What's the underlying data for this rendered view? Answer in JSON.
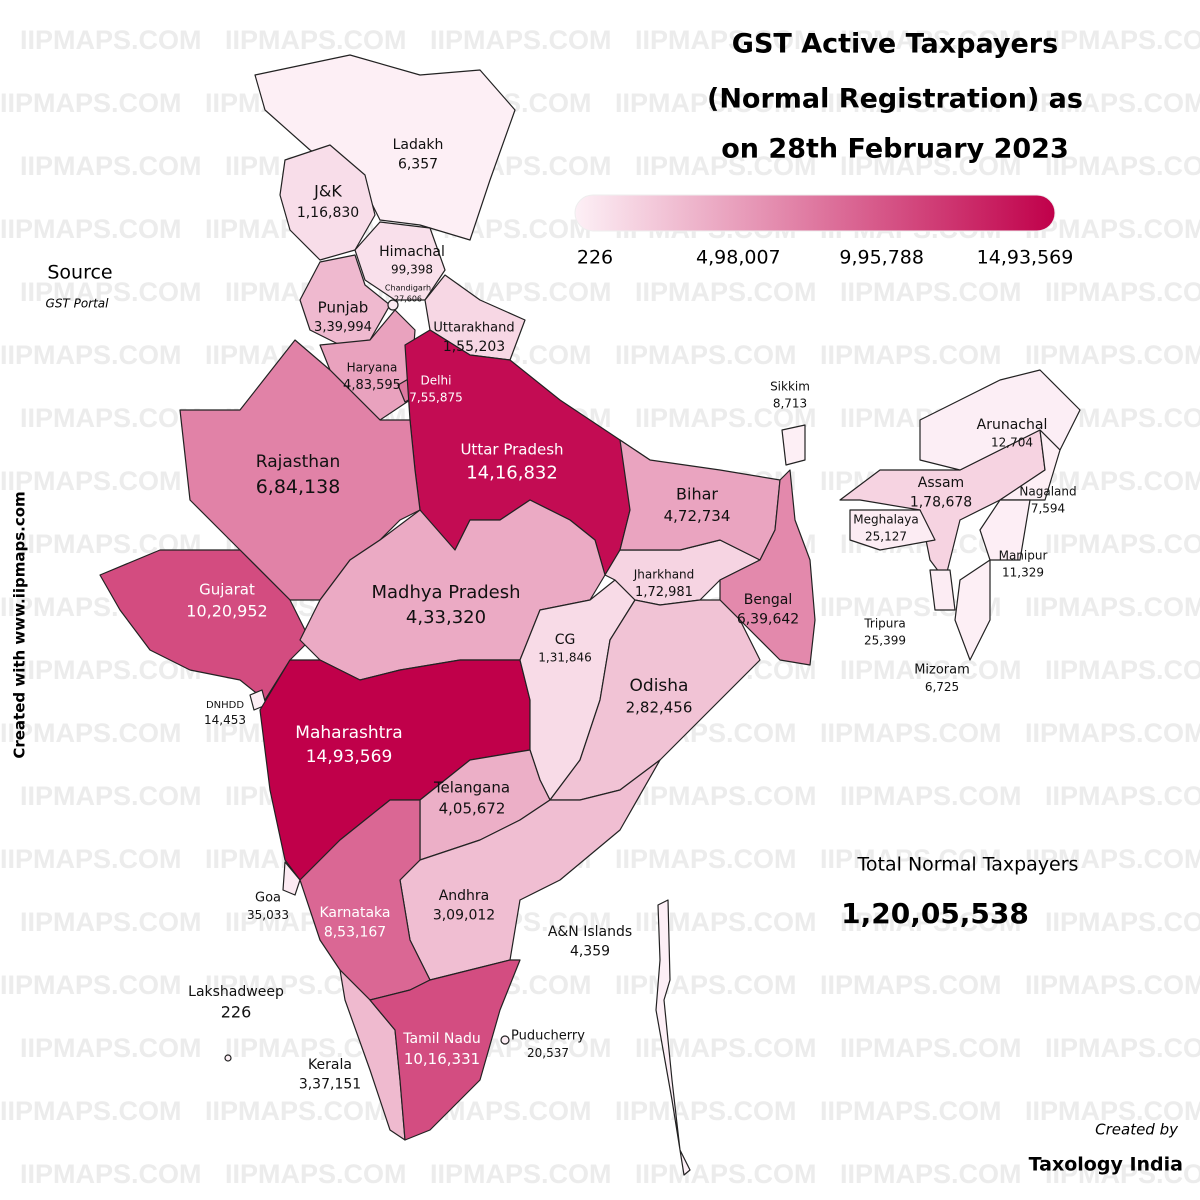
{
  "title": [
    "GST Active Taxpayers",
    "(Normal Registration) as",
    "on 28th February 2023"
  ],
  "source": {
    "heading": "Source",
    "text": "GST Portal"
  },
  "side_credit": "Created with www.iipmaps.com",
  "watermark": "IIPMAPS.COM",
  "legend": {
    "colors": [
      "#fdf0f6",
      "#c0004a"
    ],
    "ticks": [
      {
        "value": 226,
        "label": "226"
      },
      {
        "value": 498007,
        "label": "4,98,007"
      },
      {
        "value": 995788,
        "label": "9,95,788"
      },
      {
        "value": 1493569,
        "label": "14,93,569"
      }
    ]
  },
  "regions": [
    {
      "name": "Ladakh",
      "value": 6357,
      "label": "6,357"
    },
    {
      "name": "J&K",
      "value": 116830,
      "label": "1,16,830"
    },
    {
      "name": "Himachal",
      "value": 99398,
      "label": "99,398"
    },
    {
      "name": "Punjab",
      "value": 339994,
      "label": "3,39,994"
    },
    {
      "name": "Chandigarh",
      "value": 27606,
      "label": "27,606"
    },
    {
      "name": "Uttarakhand",
      "value": 155203,
      "label": "1,55,203"
    },
    {
      "name": "Haryana",
      "value": 483595,
      "label": "4,83,595"
    },
    {
      "name": "Delhi",
      "value": 755875,
      "label": "7,55,875"
    },
    {
      "name": "Uttar Pradesh",
      "value": 1416832,
      "label": "14,16,832"
    },
    {
      "name": "Rajasthan",
      "value": 684138,
      "label": "6,84,138"
    },
    {
      "name": "Gujarat",
      "value": 1020952,
      "label": "10,20,952"
    },
    {
      "name": "DNHDD",
      "value": 14453,
      "label": "14,453"
    },
    {
      "name": "Madhya Pradesh",
      "value": 433320,
      "label": "4,33,320"
    },
    {
      "name": "Maharashtra",
      "value": 1493569,
      "label": "14,93,569"
    },
    {
      "name": "Goa",
      "value": 35033,
      "label": "35,033"
    },
    {
      "name": "CG",
      "value": 131846,
      "label": "1,31,846"
    },
    {
      "name": "Jharkhand",
      "value": 172981,
      "label": "1,72,981"
    },
    {
      "name": "Bihar",
      "value": 472734,
      "label": "4,72,734"
    },
    {
      "name": "Bengal",
      "value": 639642,
      "label": "6,39,642"
    },
    {
      "name": "Sikkim",
      "value": 8713,
      "label": "8,713"
    },
    {
      "name": "Odisha",
      "value": 282456,
      "label": "2,82,456"
    },
    {
      "name": "Telangana",
      "value": 405672,
      "label": "4,05,672"
    },
    {
      "name": "Andhra",
      "value": 309012,
      "label": "3,09,012"
    },
    {
      "name": "Karnataka",
      "value": 853167,
      "label": "8,53,167"
    },
    {
      "name": "Kerala",
      "value": 337151,
      "label": "3,37,151"
    },
    {
      "name": "Tamil Nadu",
      "value": 1016331,
      "label": "10,16,331"
    },
    {
      "name": "Puducherry",
      "value": 20537,
      "label": "20,537"
    },
    {
      "name": "Lakshadweep",
      "value": 226,
      "label": "226"
    },
    {
      "name": "A&N Islands",
      "value": 4359,
      "label": "4,359"
    },
    {
      "name": "Assam",
      "value": 178678,
      "label": "1,78,678"
    },
    {
      "name": "Arunachal",
      "value": 12704,
      "label": "12,704"
    },
    {
      "name": "Nagaland",
      "value": 7594,
      "label": "7,594"
    },
    {
      "name": "Meghalaya",
      "value": 25127,
      "label": "25,127"
    },
    {
      "name": "Manipur",
      "value": 11329,
      "label": "11,329"
    },
    {
      "name": "Mizoram",
      "value": 6725,
      "label": "6,725"
    },
    {
      "name": "Tripura",
      "value": 25399,
      "label": "25,399"
    }
  ],
  "total": {
    "heading": "Total Normal Taxpayers",
    "label": "1,20,05,538"
  },
  "footer": {
    "created_by": "Created by",
    "author": "Taxology India"
  }
}
